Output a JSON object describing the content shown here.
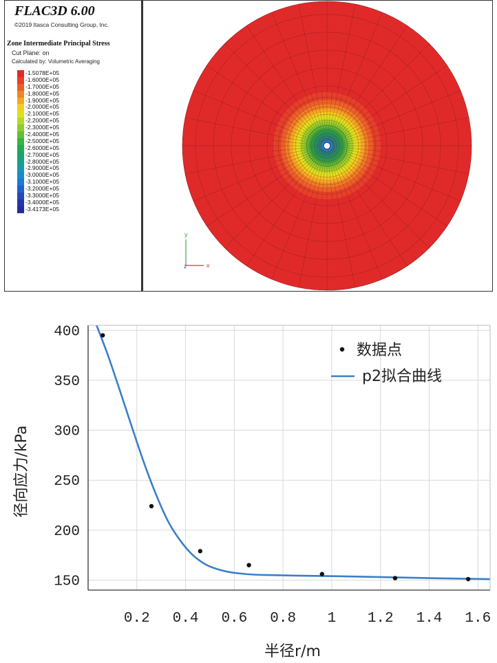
{
  "flac": {
    "app_title": "FLAC3D 6.00",
    "copyright": "©2019 Itasca Consulting Group, Inc.",
    "legend_title": "Zone Intermediate Principal Stress",
    "cut_plane": "Cut Plane: on",
    "calculated_by": "Calculated by: Volumetric Averaging",
    "legend_entries": [
      {
        "label": "-1.5078E+05",
        "color": "#e02a2a"
      },
      {
        "label": "-1.6000E+05",
        "color": "#e5402a"
      },
      {
        "label": "-1.7000E+05",
        "color": "#ea6028"
      },
      {
        "label": "-1.8000E+05",
        "color": "#ef8526"
      },
      {
        "label": "-1.9000E+05",
        "color": "#f2a824"
      },
      {
        "label": "-2.0000E+05",
        "color": "#efd01f"
      },
      {
        "label": "-2.1000E+05",
        "color": "#dce11c"
      },
      {
        "label": "-2.2000E+05",
        "color": "#b4d926"
      },
      {
        "label": "-2.3000E+05",
        "color": "#8ccd2e"
      },
      {
        "label": "-2.4000E+05",
        "color": "#62c036"
      },
      {
        "label": "-2.5000E+05",
        "color": "#3ab340"
      },
      {
        "label": "-2.6000E+05",
        "color": "#22a955"
      },
      {
        "label": "-2.7000E+05",
        "color": "#1ba36d"
      },
      {
        "label": "-2.8000E+05",
        "color": "#189e8c"
      },
      {
        "label": "-2.9000E+05",
        "color": "#1898ad"
      },
      {
        "label": "-3.0000E+05",
        "color": "#1a8ccb"
      },
      {
        "label": "-3.1000E+05",
        "color": "#1d78d8"
      },
      {
        "label": "-3.2000E+05",
        "color": "#2060cc"
      },
      {
        "label": "-3.3000E+05",
        "color": "#2248bd"
      },
      {
        "label": "-3.4000E+05",
        "color": "#2436ae"
      },
      {
        "label": "-3.4173E+05",
        "color": "#262a9e"
      }
    ],
    "axes_triad": {
      "y": "y",
      "x": "x",
      "z": "z"
    }
  },
  "chart_data": {
    "type": "scatter",
    "xlabel": "半径r/m",
    "ylabel": "径向应力/kPa",
    "xlim": [
      0.0,
      1.65
    ],
    "ylim": [
      140,
      405
    ],
    "x_ticks": [
      "0.2",
      "0.4",
      "0.6",
      "0.8",
      "1",
      "1.2",
      "1.4",
      "1.6"
    ],
    "x_tick_values": [
      0.2,
      0.4,
      0.6,
      0.8,
      1.0,
      1.2,
      1.4,
      1.6
    ],
    "y_ticks": [
      "150",
      "200",
      "250",
      "300",
      "350",
      "400"
    ],
    "y_tick_values": [
      150,
      200,
      250,
      300,
      350,
      400
    ],
    "grid": true,
    "legend_position": "top-right",
    "series": [
      {
        "name": "数据点",
        "kind": "scatter",
        "color": "#111111",
        "x": [
          0.06,
          0.26,
          0.46,
          0.66,
          0.96,
          1.26,
          1.56
        ],
        "y": [
          395,
          224,
          179,
          165,
          156,
          152,
          151
        ]
      },
      {
        "name": "p2拟合曲线",
        "kind": "line",
        "color": "#3a7fc8",
        "x": [
          0.03,
          0.08,
          0.13,
          0.18,
          0.23,
          0.28,
          0.33,
          0.38,
          0.43,
          0.48,
          0.53,
          0.58,
          0.63,
          0.68,
          0.75,
          0.85,
          1.0,
          1.2,
          1.4,
          1.65
        ],
        "y": [
          408,
          376,
          340,
          303,
          267,
          235,
          208,
          189,
          175,
          166,
          161,
          158,
          156.5,
          155.5,
          155,
          154.5,
          154,
          153,
          152,
          151
        ]
      }
    ]
  }
}
